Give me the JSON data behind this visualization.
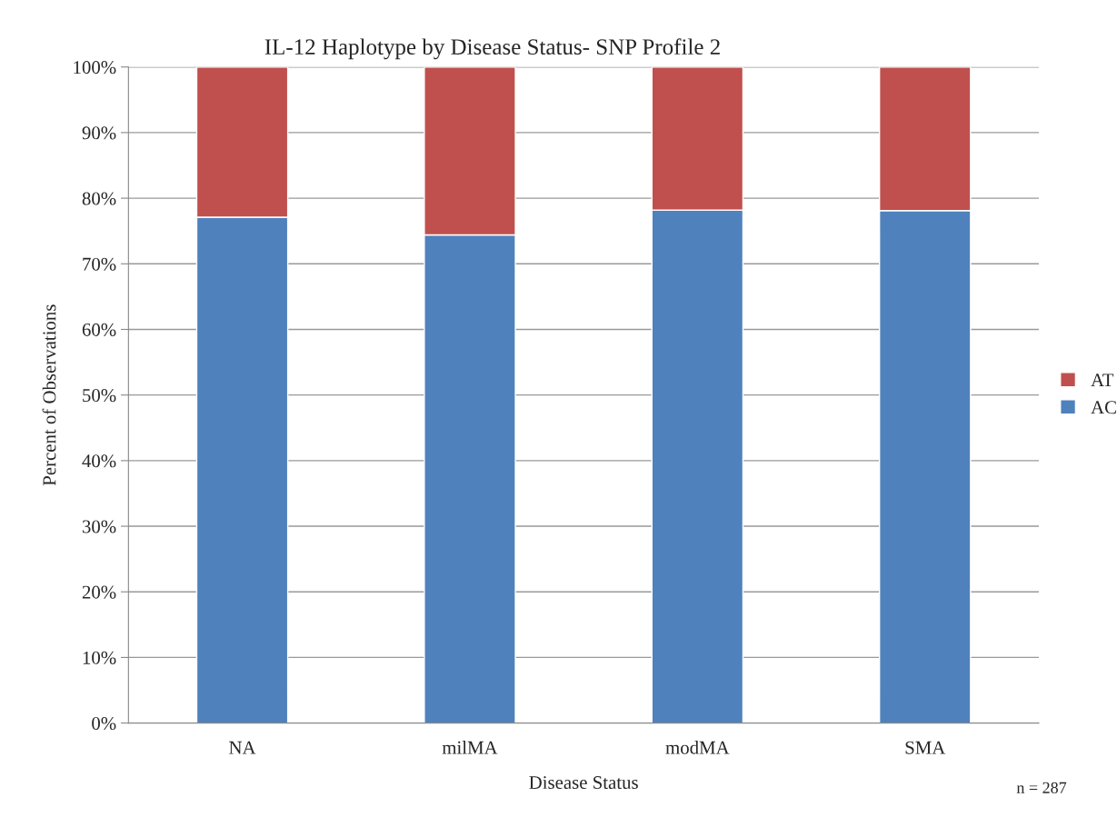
{
  "chart_data": {
    "type": "bar",
    "title": "IL-12 Haplotype by Disease Status- SNP Profile 2",
    "xlabel": "Disease Status",
    "ylabel": "Percent of Observations",
    "categories": [
      "NA",
      "milMA",
      "modMA",
      "SMA"
    ],
    "series": [
      {
        "name": "AC",
        "color": "#4f81bd",
        "values": [
          77.1,
          74.4,
          78.2,
          78.1
        ]
      },
      {
        "name": "AT",
        "color": "#c0504d",
        "values": [
          22.9,
          25.6,
          21.8,
          21.9
        ]
      }
    ],
    "stacked": true,
    "ylim": [
      0,
      100
    ],
    "yticks": [
      {
        "value": 0,
        "label": "0%"
      },
      {
        "value": 10,
        "label": "10%"
      },
      {
        "value": 20,
        "label": "20%"
      },
      {
        "value": 30,
        "label": "30%"
      },
      {
        "value": 40,
        "label": "40%"
      },
      {
        "value": 50,
        "label": "50%"
      },
      {
        "value": 60,
        "label": "60%"
      },
      {
        "value": 70,
        "label": "70%"
      },
      {
        "value": 80,
        "label": "80%"
      },
      {
        "value": 90,
        "label": "90%"
      },
      {
        "value": 100,
        "label": "100%"
      }
    ],
    "grid": "y",
    "legend": "right",
    "annotations": [
      "n = 287"
    ]
  }
}
